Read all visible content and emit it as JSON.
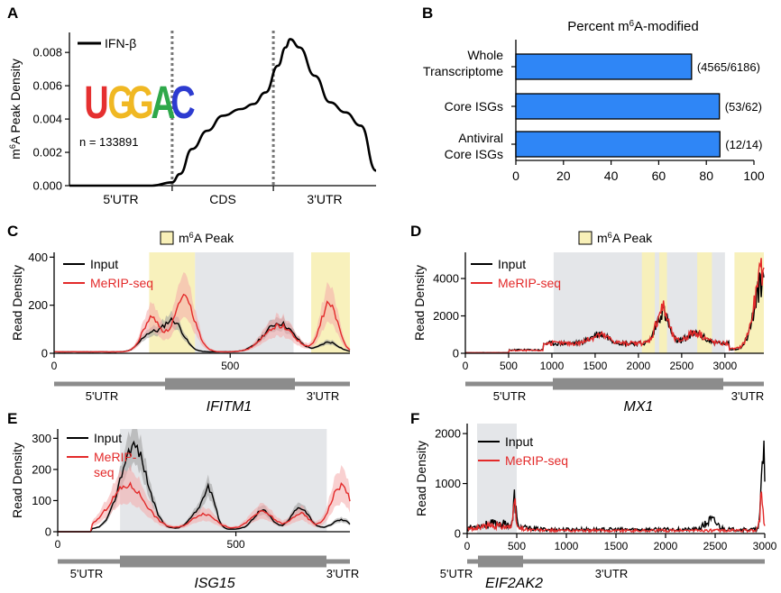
{
  "chart_data": [
    {
      "panel": "A",
      "type": "line",
      "ylabel": "m6A Peak Density",
      "y_ticks": [
        "0.000",
        "0.002",
        "0.004",
        "0.006",
        "0.008"
      ],
      "ylim": [
        0,
        0.0092
      ],
      "x_regions": [
        "5'UTR",
        "CDS",
        "3'UTR"
      ],
      "legend": "IFN-β",
      "motif": [
        "U",
        "G",
        "G",
        "A",
        "C"
      ],
      "annotation": "n = 133891",
      "series": [
        {
          "name": "IFN-β",
          "points": [
            [
              0,
              0
            ],
            [
              0.05,
              0
            ],
            [
              0.1,
              0
            ],
            [
              0.2,
              0
            ],
            [
              0.27,
              0
            ],
            [
              0.335,
              0.0002
            ],
            [
              0.36,
              0.0007
            ],
            [
              0.4,
              0.0022
            ],
            [
              0.45,
              0.0033
            ],
            [
              0.5,
              0.0042
            ],
            [
              0.56,
              0.0046
            ],
            [
              0.6,
              0.0049
            ],
            [
              0.64,
              0.0056
            ],
            [
              0.68,
              0.0072
            ],
            [
              0.705,
              0.0083
            ],
            [
              0.72,
              0.0088
            ],
            [
              0.75,
              0.0083
            ],
            [
              0.8,
              0.0066
            ],
            [
              0.85,
              0.005
            ],
            [
              0.9,
              0.0044
            ],
            [
              0.95,
              0.0036
            ],
            [
              1,
              0.0009
            ]
          ]
        }
      ]
    },
    {
      "panel": "B",
      "type": "bar",
      "title": "Percent m6A-modified",
      "categories": [
        "Whole Transcriptome",
        "Core ISGs",
        "Antiviral Core ISGs"
      ],
      "values": [
        73.8,
        85.5,
        85.7
      ],
      "labels": [
        "(4565/6186)",
        "(53/62)",
        "(12/14)"
      ],
      "xlim": [
        0,
        100
      ],
      "x_ticks": [
        "0",
        "20",
        "40",
        "60",
        "80",
        "100"
      ],
      "color": "#2f86f6"
    },
    {
      "panel": "C",
      "type": "area",
      "gene": "IFITM1",
      "ylabel": "Read Density",
      "ylim": [
        0,
        420
      ],
      "y_ticks": [
        "0",
        "200",
        "400"
      ],
      "xlim": [
        0,
        840
      ],
      "x_ticks": [
        "0",
        "500"
      ],
      "legend": [
        "Input",
        "MeRIP-seq"
      ],
      "peak_legend": "m6A Peak",
      "regions": [
        "5'UTR",
        "3'UTR"
      ]
    },
    {
      "panel": "D",
      "type": "area",
      "gene": "MX1",
      "ylabel": "Read Density",
      "ylim": [
        0,
        5400
      ],
      "y_ticks": [
        "0",
        "2000",
        "4000"
      ],
      "xlim": [
        0,
        3450
      ],
      "x_ticks": [
        "0",
        "500",
        "1000",
        "1500",
        "2000",
        "2500",
        "3000"
      ],
      "legend": [
        "Input",
        "MeRIP-seq"
      ],
      "peak_legend": "m6A Peak",
      "regions": [
        "5'UTR",
        "3'UTR"
      ]
    },
    {
      "panel": "E",
      "type": "area",
      "gene": "ISG15",
      "ylabel": "Read Density",
      "ylim": [
        0,
        330
      ],
      "y_ticks": [
        "0",
        "100",
        "200",
        "300"
      ],
      "xlim": [
        0,
        820
      ],
      "x_ticks": [
        "0",
        "500"
      ],
      "legend": [
        "Input",
        "MeRIP-",
        "seq"
      ],
      "regions": [
        "5'UTR",
        "3'UTR"
      ]
    },
    {
      "panel": "F",
      "type": "area",
      "gene": "EIF2AK2",
      "ylabel": "Read Density",
      "ylim": [
        0,
        2200
      ],
      "y_ticks": [
        "0",
        "1000",
        "2000"
      ],
      "xlim": [
        0,
        3000
      ],
      "x_ticks": [
        "0",
        "500",
        "1000",
        "1500",
        "2000",
        "2500",
        "3000"
      ],
      "legend": [
        "Input",
        "MeRIP-seq"
      ],
      "regions": [
        "5'UTR",
        "3'UTR"
      ]
    }
  ],
  "panel_labels": [
    "A",
    "B",
    "C",
    "D",
    "E",
    "F"
  ],
  "colors": {
    "input": "#000000",
    "merip": "#e32a2a",
    "cds_shade": "#e4e6e9",
    "peak_shade": "#f8f0b8",
    "bar": "#2f86f6",
    "merip_band": "#f4a9a9",
    "input_band": "#9a9a9a"
  }
}
